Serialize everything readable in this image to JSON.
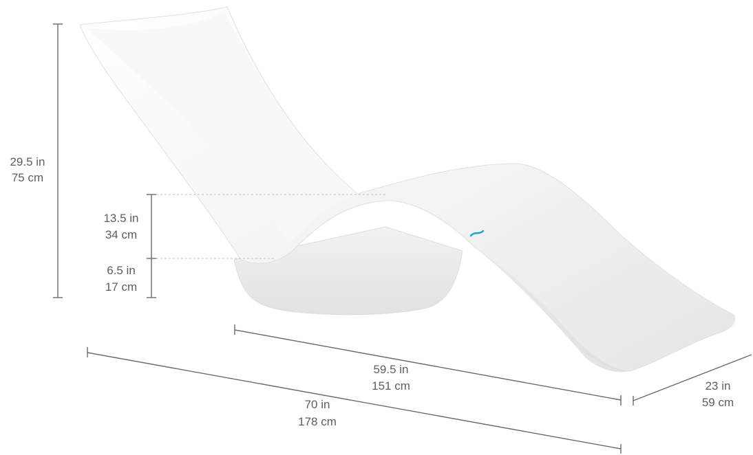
{
  "dimensions": {
    "overall_height": {
      "imperial": "29.5 in",
      "metric": "75 cm"
    },
    "seat_height_upper": {
      "imperial": "13.5 in",
      "metric": "34 cm"
    },
    "seat_height_lower": {
      "imperial": "6.5 in",
      "metric": "17 cm"
    },
    "bed_length": {
      "imperial": "59.5 in",
      "metric": "151 cm"
    },
    "overall_length": {
      "imperial": "70 in",
      "metric": "178 cm"
    },
    "width": {
      "imperial": "23 in",
      "metric": "59 cm"
    }
  },
  "colors": {
    "dimension_line": "#6a6a6a",
    "dimension_text": "#5e5e5e",
    "chaise_body": "#f4f4f4",
    "logo_accent": "#1aa5d6"
  }
}
